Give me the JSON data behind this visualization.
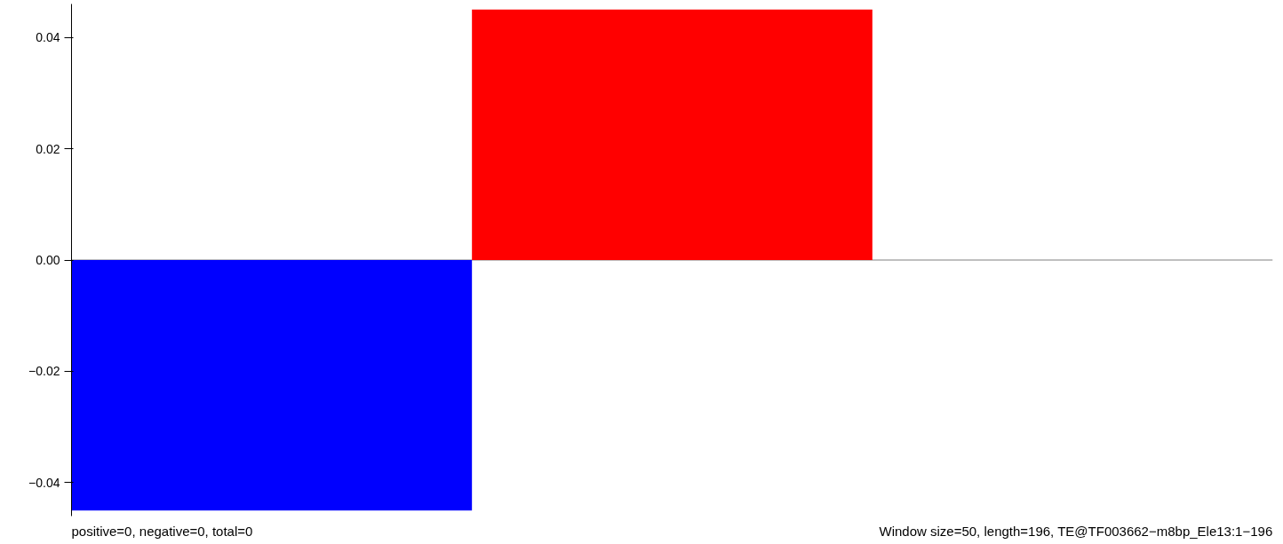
{
  "chart_data": {
    "type": "bar",
    "categories": [
      null,
      null,
      null
    ],
    "values": [
      -0.045,
      0.045,
      0
    ],
    "colors": [
      "#0000ff",
      "#ff0000",
      "#ff0000"
    ],
    "ref_lines": [
      {
        "axis": "y",
        "value": 0,
        "color": "#808080"
      }
    ],
    "ylim": [
      -0.046,
      0.046
    ],
    "yticks": [
      {
        "value": -0.04,
        "label": "−0.04"
      },
      {
        "value": -0.02,
        "label": "−0.02"
      },
      {
        "value": 0,
        "label": "0.00"
      },
      {
        "value": 0.02,
        "label": "0.02"
      },
      {
        "value": 0.04,
        "label": "0.04"
      }
    ],
    "tick_labels": "y",
    "grid": false,
    "annotations": [
      "positive=0, negative=0, total=0",
      "Window size=50, length=196, TE@TF003662−m8bp_Ele13:1−196"
    ]
  }
}
